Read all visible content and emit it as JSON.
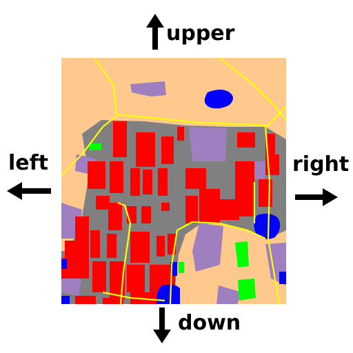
{
  "directions": {
    "up": "upper",
    "left": "left",
    "right": "right",
    "down": "down"
  },
  "legend_colors": {
    "open_land": "#FFC88C",
    "building": "#FF0000",
    "road": "#808080",
    "low_vegetation": "#9F7FC0",
    "water": "#0000FF",
    "tree": "#00FF00",
    "boundary_line": "#FFFF00"
  },
  "icons": [
    "arrow-up-icon",
    "arrow-left-icon",
    "arrow-right-icon",
    "arrow-down-icon"
  ]
}
